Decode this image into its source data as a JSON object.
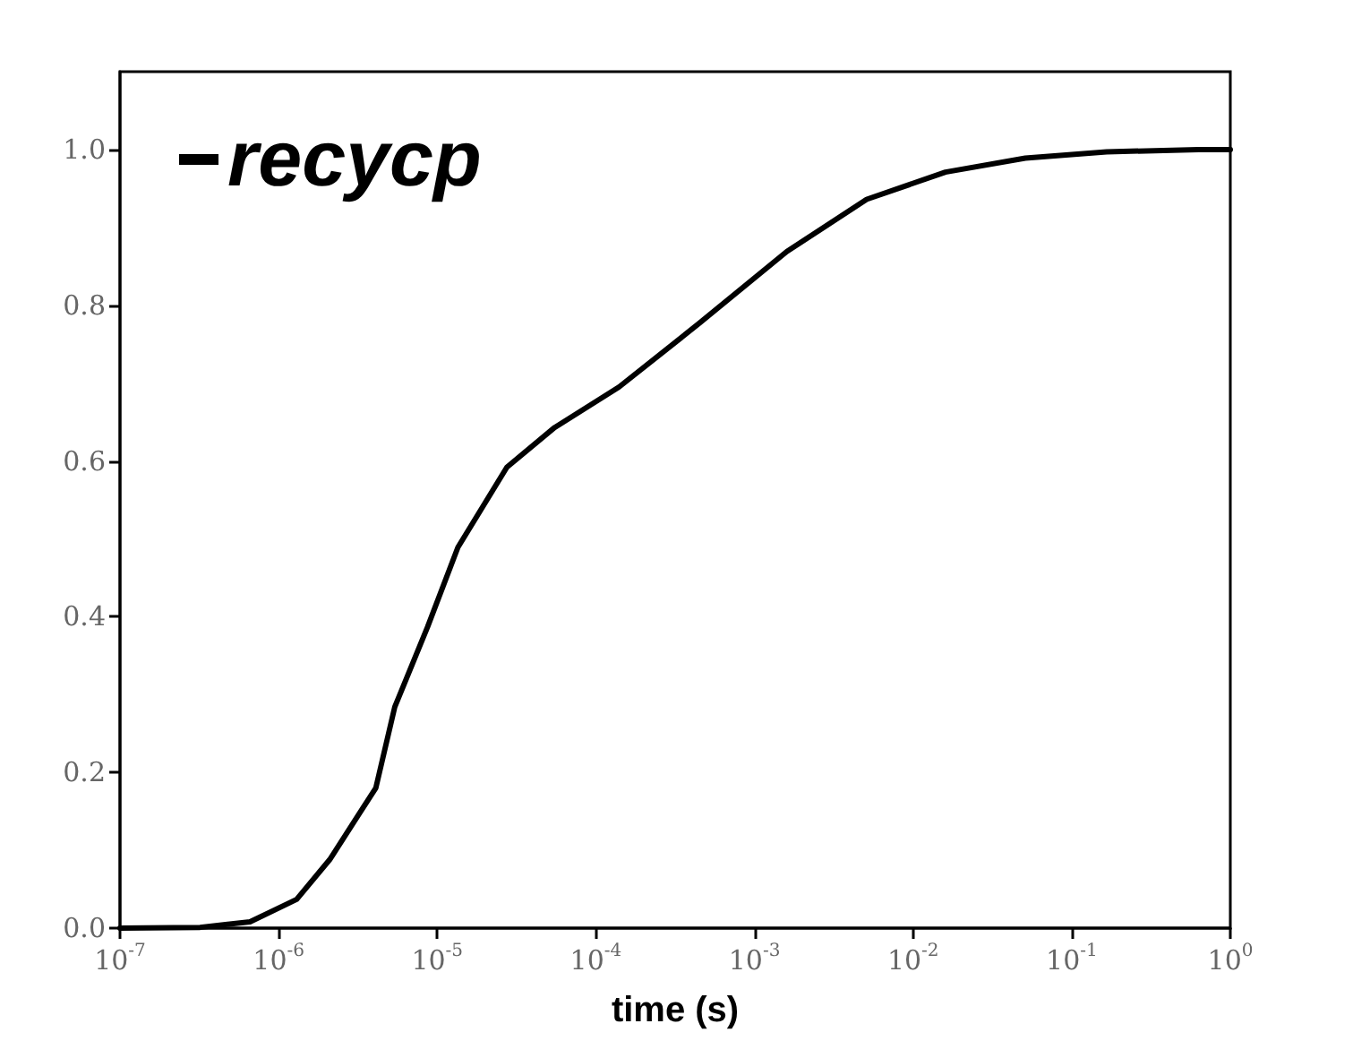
{
  "chart_data": {
    "type": "line",
    "xlabel": "time (s)",
    "log": "x",
    "legend": "top left",
    "grid": false,
    "marker": "none",
    "line_style": "solid",
    "xlim": [
      1e-07,
      1
    ],
    "ylim": [
      0,
      1.1
    ],
    "xticks": [
      {
        "value": 1e-07,
        "label": "10$^{-7}$"
      },
      {
        "value": 1e-06,
        "label": "10$^{-6}$"
      },
      {
        "value": 1e-05,
        "label": "10$^{-5}$"
      },
      {
        "value": 0.0001,
        "label": "10$^{-4}$"
      },
      {
        "value": 0.001,
        "label": "10$^{-3}$"
      },
      {
        "value": 0.01,
        "label": "10$^{-2}$"
      },
      {
        "value": 0.1,
        "label": "10$^{-1}$"
      },
      {
        "value": 1,
        "label": "10$^{0}$"
      }
    ],
    "yticks": [
      {
        "value": 0,
        "label": "0.0"
      },
      {
        "value": 0.2,
        "label": "0.2"
      },
      {
        "value": 0.4,
        "label": "0.4"
      },
      {
        "value": 0.6,
        "label": "0.6"
      },
      {
        "value": 0.8,
        "label": "0.8"
      },
      {
        "value": 1,
        "label": "1.0"
      }
    ],
    "series": [
      {
        "name": "recycp",
        "color": "#000000",
        "x": [
          1e-07,
          3.2e-07,
          6.6e-07,
          1.3e-06,
          2.1e-06,
          3.2e-06,
          4.1e-06,
          5.4e-06,
          8.7e-06,
          1.35e-05,
          2.75e-05,
          5.5e-05,
          0.00014,
          0.00045,
          0.0016,
          0.0051,
          0.016,
          0.051,
          0.166,
          0.63,
          1
        ],
        "values": [
          0,
          0.001,
          0.008,
          0.037,
          0.088,
          0.146,
          0.18,
          0.284,
          0.387,
          0.489,
          0.592,
          0.643,
          0.695,
          0.777,
          0.869,
          0.936,
          0.971,
          0.989,
          0.997,
          1.0,
          1.0
        ]
      }
    ]
  }
}
